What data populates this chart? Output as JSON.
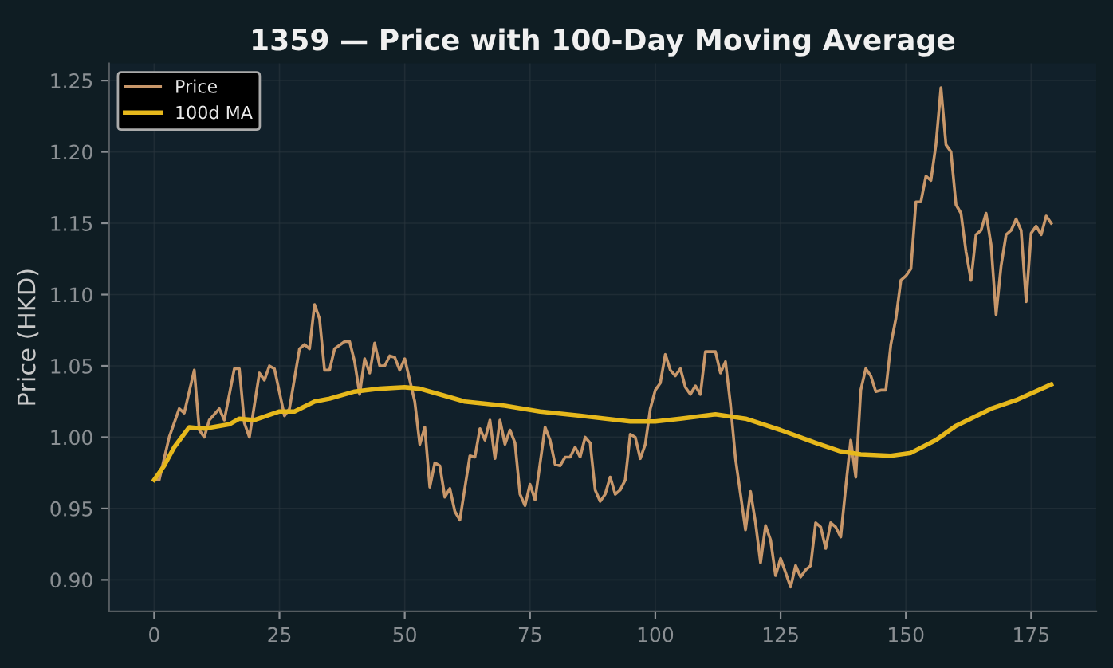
{
  "chart_data": {
    "type": "line",
    "title": "1359 — Price with 100-Day Moving Average",
    "ylabel": "Price (HKD)",
    "xlim": [
      -9,
      188
    ],
    "ylim": [
      0.878,
      1.262
    ],
    "xticks": [
      0,
      25,
      50,
      75,
      100,
      125,
      150,
      175
    ],
    "yticks": [
      {
        "value": 0.9,
        "label": "0.90"
      },
      {
        "value": 0.95,
        "label": "0.95"
      },
      {
        "value": 1.0,
        "label": "1.00"
      },
      {
        "value": 1.05,
        "label": "1.05"
      },
      {
        "value": 1.1,
        "label": "1.10"
      },
      {
        "value": 1.15,
        "label": "1.15"
      },
      {
        "value": 1.2,
        "label": "1.20"
      },
      {
        "value": 1.25,
        "label": "1.25"
      }
    ],
    "grid": true,
    "legend": "top left",
    "series": [
      {
        "name": "Price",
        "color": "#c8976a",
        "x": [
          0,
          1,
          3,
          5,
          6,
          8,
          9,
          10,
          11,
          13,
          14,
          16,
          17,
          18,
          19,
          21,
          22,
          23,
          24,
          26,
          27,
          29,
          30,
          31,
          32,
          33,
          34,
          35,
          36,
          38,
          39,
          40,
          41,
          42,
          43,
          44,
          45,
          46,
          47,
          48,
          49,
          50,
          51,
          52,
          53,
          54,
          55,
          56,
          57,
          58,
          59,
          60,
          61,
          63,
          64,
          65,
          66,
          67,
          68,
          69,
          70,
          71,
          72,
          73,
          74,
          75,
          76,
          78,
          79,
          80,
          81,
          82,
          83,
          84,
          85,
          86,
          87,
          88,
          89,
          90,
          91,
          92,
          93,
          94,
          95,
          96,
          97,
          98,
          99,
          100,
          101,
          102,
          103,
          104,
          105,
          106,
          107,
          108,
          109,
          110,
          112,
          113,
          114,
          115,
          116,
          117,
          118,
          119,
          120,
          121,
          122,
          123,
          124,
          125,
          126,
          127,
          128,
          129,
          130,
          131,
          132,
          133,
          134,
          135,
          136,
          137,
          138,
          139,
          140,
          141,
          142,
          143,
          144,
          145,
          146,
          147,
          148,
          149,
          150,
          151,
          152,
          153,
          154,
          155,
          156,
          157,
          158,
          159,
          160,
          161,
          162,
          163,
          164,
          165,
          166,
          167,
          168,
          169,
          170,
          171,
          172,
          173,
          174,
          175,
          176,
          177,
          178,
          179
        ],
        "values": [
          0.97,
          0.97,
          1.0,
          1.02,
          1.017,
          1.047,
          1.005,
          1.0,
          1.012,
          1.02,
          1.012,
          1.048,
          1.048,
          1.01,
          1.0,
          1.045,
          1.04,
          1.05,
          1.048,
          1.015,
          1.02,
          1.062,
          1.065,
          1.062,
          1.093,
          1.083,
          1.047,
          1.047,
          1.062,
          1.067,
          1.067,
          1.053,
          1.03,
          1.055,
          1.045,
          1.066,
          1.05,
          1.05,
          1.057,
          1.056,
          1.047,
          1.055,
          1.04,
          1.025,
          0.995,
          1.007,
          0.965,
          0.982,
          0.98,
          0.958,
          0.964,
          0.948,
          0.942,
          0.987,
          0.986,
          1.006,
          0.998,
          1.012,
          0.985,
          1.012,
          0.995,
          1.005,
          0.996,
          0.96,
          0.952,
          0.967,
          0.956,
          1.007,
          0.998,
          0.981,
          0.98,
          0.986,
          0.986,
          0.993,
          0.986,
          1.0,
          0.996,
          0.963,
          0.955,
          0.96,
          0.972,
          0.96,
          0.963,
          0.97,
          1.002,
          1.0,
          0.985,
          0.995,
          1.02,
          1.033,
          1.038,
          1.058,
          1.047,
          1.043,
          1.048,
          1.035,
          1.03,
          1.036,
          1.03,
          1.06,
          1.06,
          1.045,
          1.053,
          1.023,
          0.985,
          0.96,
          0.935,
          0.962,
          0.94,
          0.912,
          0.938,
          0.928,
          0.903,
          0.915,
          0.905,
          0.895,
          0.91,
          0.902,
          0.907,
          0.91,
          0.94,
          0.937,
          0.922,
          0.94,
          0.937,
          0.93,
          0.965,
          0.998,
          0.972,
          1.033,
          1.048,
          1.043,
          1.032,
          1.033,
          1.033,
          1.065,
          1.083,
          1.11,
          1.113,
          1.118,
          1.165,
          1.165,
          1.183,
          1.18,
          1.205,
          1.245,
          1.205,
          1.2,
          1.163,
          1.157,
          1.13,
          1.11,
          1.142,
          1.145,
          1.157,
          1.135,
          1.086,
          1.12,
          1.142,
          1.145,
          1.153,
          1.145,
          1.095,
          1.143,
          1.148,
          1.142,
          1.155,
          1.15
        ]
      },
      {
        "name": "100d MA",
        "color": "#e6b81c",
        "x": [
          0,
          2,
          4,
          7,
          10,
          15,
          17,
          20,
          25,
          28,
          32,
          35,
          40,
          45,
          50,
          53,
          57,
          62,
          70,
          77,
          85,
          95,
          100,
          105,
          112,
          118,
          125,
          132,
          137,
          141,
          147,
          151,
          156,
          160,
          167,
          172,
          179
        ],
        "values": [
          0.97,
          0.98,
          0.993,
          1.007,
          1.006,
          1.009,
          1.013,
          1.012,
          1.018,
          1.018,
          1.025,
          1.027,
          1.032,
          1.034,
          1.035,
          1.034,
          1.03,
          1.025,
          1.022,
          1.018,
          1.015,
          1.011,
          1.011,
          1.013,
          1.016,
          1.013,
          1.005,
          0.996,
          0.99,
          0.988,
          0.987,
          0.989,
          0.998,
          1.008,
          1.02,
          1.026,
          1.037
        ]
      }
    ]
  }
}
